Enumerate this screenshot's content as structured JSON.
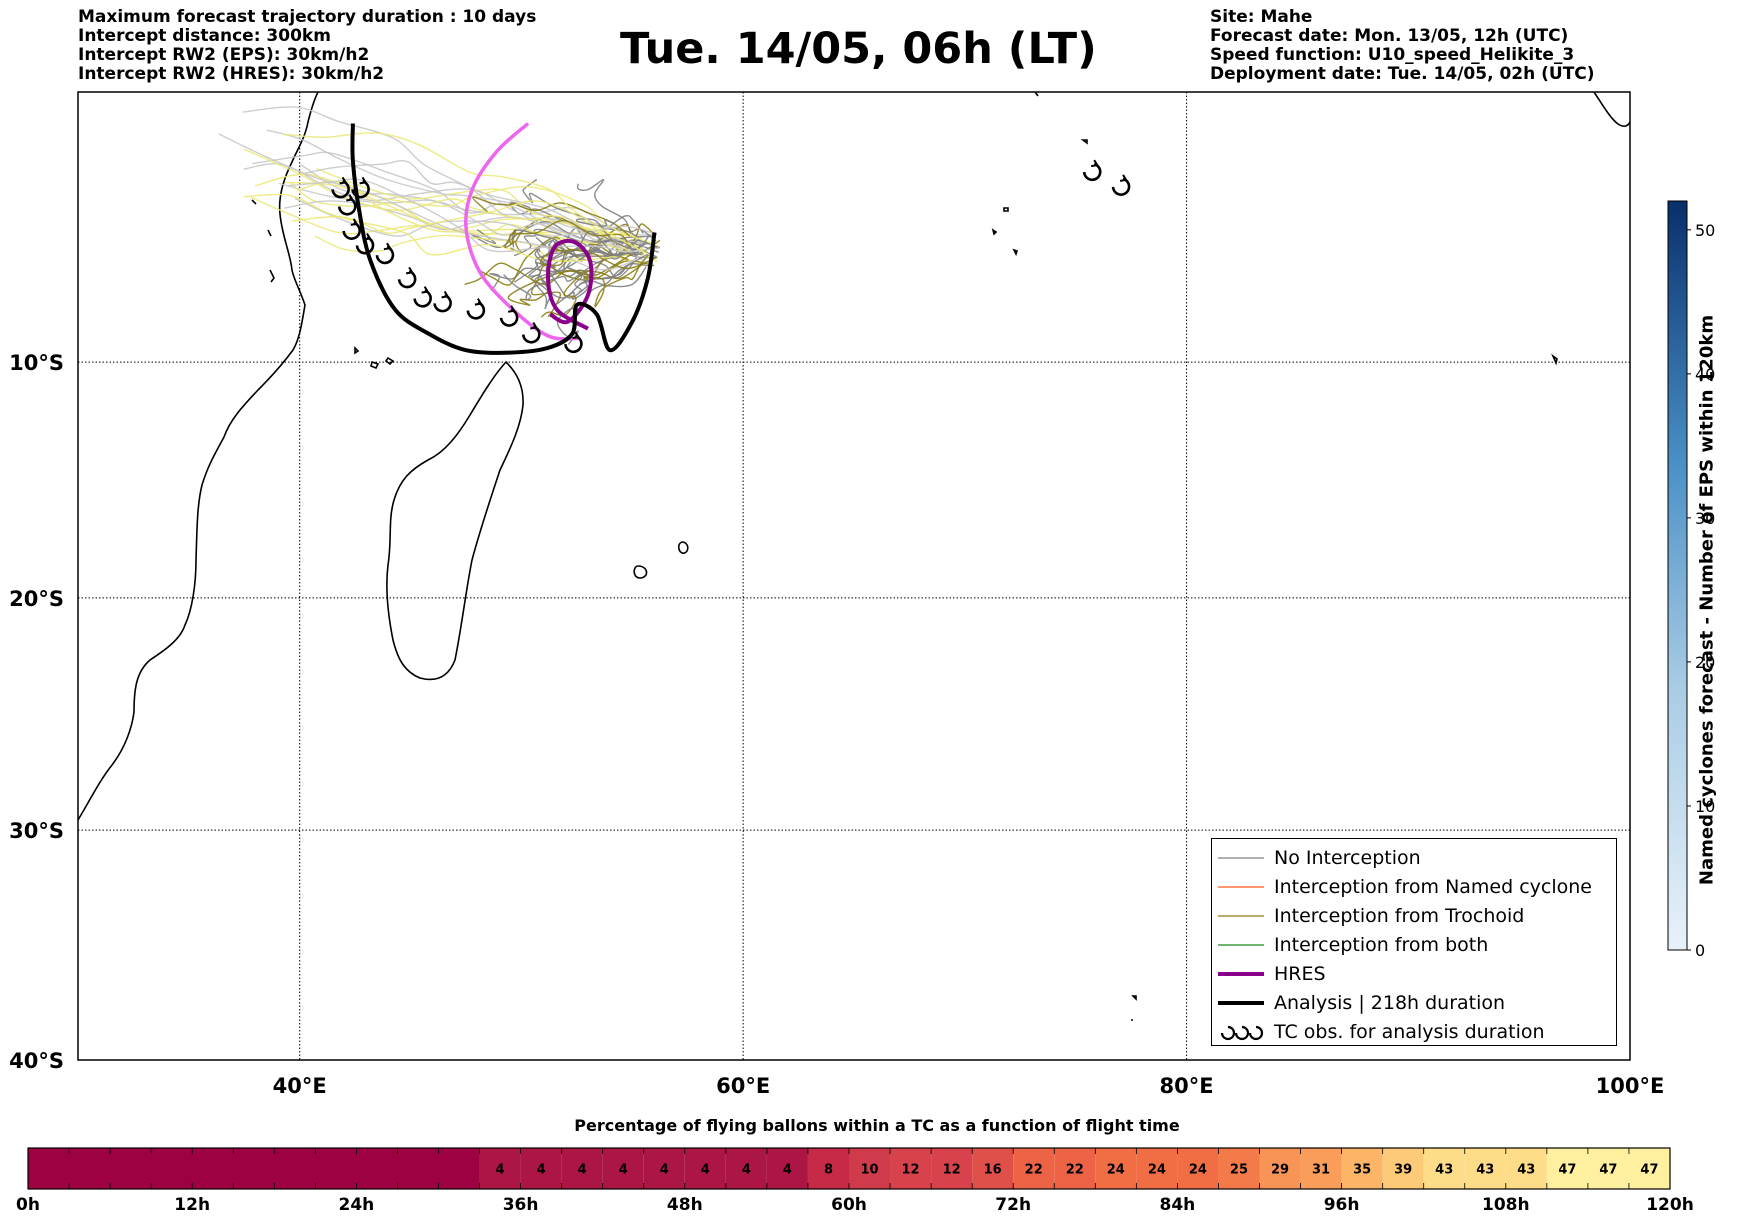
{
  "header": {
    "left_lines": [
      "Maximum forecast trajectory duration : 10 days",
      "Intercept distance: 300km",
      "Intercept RW2 (EPS):  30km/h2",
      "Intercept RW2 (HRES): 30km/h2"
    ],
    "title": "Tue. 14/05, 06h (LT)",
    "right_lines": [
      "Site: Mahe",
      "Forecast date: Mon. 13/05, 12h (UTC)",
      "Speed function: U10_speed_Helikite_3",
      "Deployment date: Tue. 14/05, 02h (UTC)"
    ]
  },
  "map": {
    "lon_range": [
      30,
      100
    ],
    "lat_range": [
      -40,
      1
    ],
    "lon_ticks": [
      {
        "value": 40,
        "label": "40°E"
      },
      {
        "value": 60,
        "label": "60°E"
      },
      {
        "value": 80,
        "label": "80°E"
      },
      {
        "value": 100,
        "label": "100°E"
      }
    ],
    "lat_ticks": [
      {
        "value": -10,
        "label": "10°S"
      },
      {
        "value": -20,
        "label": "20°S"
      },
      {
        "value": -30,
        "label": "30°S"
      },
      {
        "value": -40,
        "label": "40°S"
      }
    ],
    "gridlines": "dotted",
    "colors": {
      "no_interception": "#808080",
      "named_cyclone": "#ff5a1f",
      "trochoid": "#8a7d12",
      "both": "#1a8a1a",
      "hres": "#8b008b",
      "analysis": "#000000",
      "eps_light_grey": "#c8c8c8",
      "eps_yellow": "#ece878",
      "hres_alt": "#ee66ee"
    },
    "hres_track": [
      [
        53.0,
        -8.6
      ],
      [
        51.6,
        -7.8
      ],
      [
        51.2,
        -6.5
      ],
      [
        51.5,
        -5.2
      ],
      [
        52.4,
        -5.0
      ],
      [
        53.1,
        -5.8
      ],
      [
        53.0,
        -7.2
      ],
      [
        52.1,
        -8.3
      ],
      [
        51.3,
        -8.0
      ]
    ],
    "pink_track": [
      [
        50.3,
        -0.2
      ],
      [
        48.9,
        -1.3
      ],
      [
        47.8,
        -2.8
      ],
      [
        47.5,
        -4.4
      ],
      [
        48.1,
        -6.2
      ],
      [
        49.5,
        -7.7
      ],
      [
        51.2,
        -8.9
      ],
      [
        52.6,
        -9.0
      ]
    ],
    "analysis_track": [
      [
        56.0,
        -4.6
      ],
      [
        55.7,
        -6.5
      ],
      [
        55.0,
        -8.3
      ],
      [
        54.0,
        -9.5
      ],
      [
        53.4,
        -8.0
      ],
      [
        52.5,
        -7.6
      ],
      [
        52.3,
        -8.8
      ],
      [
        51.2,
        -9.4
      ],
      [
        49.5,
        -9.6
      ],
      [
        47.5,
        -9.5
      ],
      [
        45.8,
        -8.8
      ],
      [
        44.3,
        -7.8
      ],
      [
        43.2,
        -5.8
      ],
      [
        42.7,
        -3.8
      ],
      [
        42.4,
        -1.7
      ],
      [
        42.4,
        -0.2
      ]
    ],
    "tc_obs_points": [
      [
        41.8,
        -2.8
      ],
      [
        42.7,
        -2.8
      ],
      [
        42.1,
        -3.5
      ],
      [
        42.3,
        -4.5
      ],
      [
        42.9,
        -5.1
      ],
      [
        43.8,
        -5.5
      ],
      [
        44.8,
        -6.5
      ],
      [
        45.5,
        -7.3
      ],
      [
        46.4,
        -7.5
      ],
      [
        47.9,
        -7.8
      ],
      [
        49.4,
        -8.1
      ],
      [
        50.4,
        -8.8
      ],
      [
        52.3,
        -9.2
      ],
      [
        75.7,
        -2.1
      ],
      [
        77.0,
        -2.7
      ]
    ]
  },
  "legend": {
    "items": [
      {
        "label": "No Interception",
        "color": "#808080",
        "width": 1.3
      },
      {
        "label": "Interception from Named cyclone",
        "color": "#ff5a1f",
        "width": 1.3
      },
      {
        "label": "Interception from Trochoid",
        "color": "#8a7d12",
        "width": 1.3
      },
      {
        "label": "Interception from both",
        "color": "#1a8a1a",
        "width": 1.3
      },
      {
        "label": "HRES",
        "color": "#8b008b",
        "width": 4
      },
      {
        "label": "Analysis | 218h duration",
        "color": "#000000",
        "width": 4
      },
      {
        "label": "TC obs. for analysis duration",
        "symbol": "tc-obs"
      }
    ]
  },
  "colorbar": {
    "label": "Named cyclones forecast - Number of EPS within 120km",
    "range": [
      0,
      52
    ],
    "ticks": [
      0,
      10,
      20,
      30,
      40,
      50
    ],
    "color_low": "#e8f1fa",
    "color_high": "#08306b"
  },
  "percentage_bar": {
    "title": "Percentage of flying ballons within a TC as a function of flight time",
    "time_labels": [
      "0h",
      "12h",
      "24h",
      "36h",
      "48h",
      "60h",
      "72h",
      "84h",
      "96h",
      "108h",
      "120h"
    ],
    "hours_range": [
      0,
      120
    ],
    "cells": [
      {
        "start": 0,
        "end": 33,
        "value": 0,
        "label": "",
        "color": "#9e0142"
      },
      {
        "start": 33,
        "end": 36,
        "value": 4,
        "label": "4",
        "color": "#ac1644"
      },
      {
        "start": 36,
        "end": 39,
        "value": 4,
        "label": "4",
        "color": "#ac1644"
      },
      {
        "start": 39,
        "end": 42,
        "value": 4,
        "label": "4",
        "color": "#ac1644"
      },
      {
        "start": 42,
        "end": 45,
        "value": 4,
        "label": "4",
        "color": "#ac1644"
      },
      {
        "start": 45,
        "end": 48,
        "value": 4,
        "label": "4",
        "color": "#ac1644"
      },
      {
        "start": 48,
        "end": 51,
        "value": 4,
        "label": "4",
        "color": "#ac1644"
      },
      {
        "start": 51,
        "end": 54,
        "value": 4,
        "label": "4",
        "color": "#ac1644"
      },
      {
        "start": 54,
        "end": 57,
        "value": 4,
        "label": "4",
        "color": "#ac1644"
      },
      {
        "start": 57,
        "end": 60,
        "value": 8,
        "label": "8",
        "color": "#c62a47"
      },
      {
        "start": 60,
        "end": 63,
        "value": 10,
        "label": "10",
        "color": "#cf3b4a"
      },
      {
        "start": 63,
        "end": 66,
        "value": 12,
        "label": "12",
        "color": "#d7424c"
      },
      {
        "start": 66,
        "end": 69,
        "value": 12,
        "label": "12",
        "color": "#d7424c"
      },
      {
        "start": 69,
        "end": 72,
        "value": 16,
        "label": "16",
        "color": "#e0504a"
      },
      {
        "start": 72,
        "end": 75,
        "value": 22,
        "label": "22",
        "color": "#ec6445"
      },
      {
        "start": 75,
        "end": 78,
        "value": 22,
        "label": "22",
        "color": "#ec6445"
      },
      {
        "start": 78,
        "end": 81,
        "value": 24,
        "label": "24",
        "color": "#f16d44"
      },
      {
        "start": 81,
        "end": 84,
        "value": 24,
        "label": "24",
        "color": "#f16d44"
      },
      {
        "start": 84,
        "end": 87,
        "value": 24,
        "label": "24",
        "color": "#f16d44"
      },
      {
        "start": 87,
        "end": 90,
        "value": 25,
        "label": "25",
        "color": "#f47a49"
      },
      {
        "start": 90,
        "end": 93,
        "value": 29,
        "label": "29",
        "color": "#f89455"
      },
      {
        "start": 93,
        "end": 96,
        "value": 31,
        "label": "31",
        "color": "#fa9d5a"
      },
      {
        "start": 96,
        "end": 99,
        "value": 35,
        "label": "35",
        "color": "#fcb566"
      },
      {
        "start": 99,
        "end": 102,
        "value": 39,
        "label": "39",
        "color": "#fdca78"
      },
      {
        "start": 102,
        "end": 105,
        "value": 43,
        "label": "43",
        "color": "#fedc88"
      },
      {
        "start": 105,
        "end": 108,
        "value": 43,
        "label": "43",
        "color": "#fedc88"
      },
      {
        "start": 108,
        "end": 111,
        "value": 43,
        "label": "43",
        "color": "#fedc88"
      },
      {
        "start": 111,
        "end": 114,
        "value": 47,
        "label": "47",
        "color": "#fff0a0"
      },
      {
        "start": 114,
        "end": 117,
        "value": 47,
        "label": "47",
        "color": "#fff0a0"
      },
      {
        "start": 117,
        "end": 120,
        "value": 47,
        "label": "47",
        "color": "#fff0a0"
      }
    ]
  }
}
